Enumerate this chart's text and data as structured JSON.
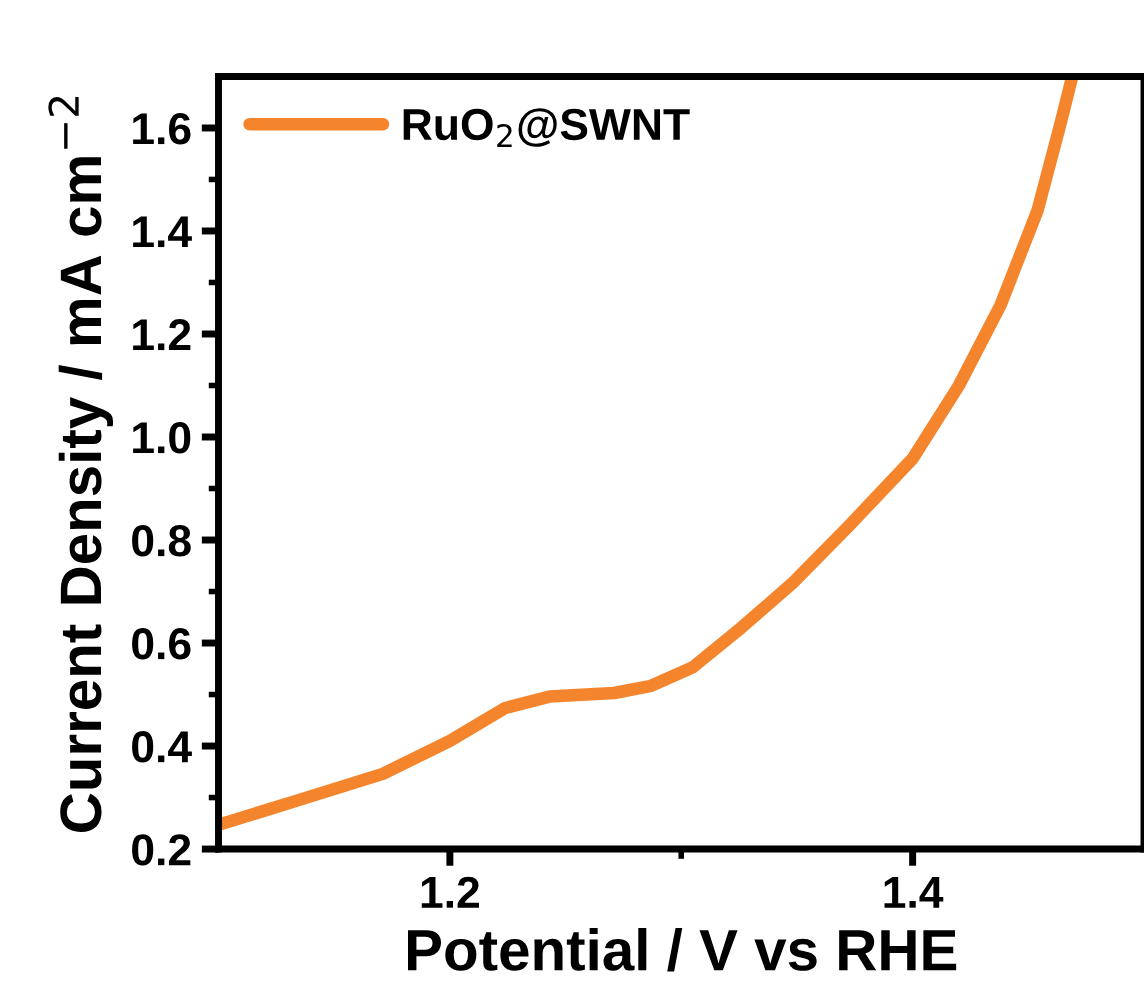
{
  "chart_data": {
    "type": "line",
    "xlabel": "Potential / V vs RHE",
    "ylabel": "Current Density / mA cm$^{−2}$",
    "xlim": [
      1.1,
      1.5
    ],
    "ylim": [
      0.2,
      1.7
    ],
    "xticks": [
      {
        "value": 1.2,
        "label": "1.2"
      },
      {
        "value": 1.3,
        "label": null
      },
      {
        "value": 1.4,
        "label": "1.4"
      }
    ],
    "yticks": [
      {
        "value": 0.2,
        "label": "0.2"
      },
      {
        "value": 0.3,
        "label": null
      },
      {
        "value": 0.4,
        "label": "0.4"
      },
      {
        "value": 0.5,
        "label": null
      },
      {
        "value": 0.6,
        "label": "0.6"
      },
      {
        "value": 0.7,
        "label": null
      },
      {
        "value": 0.8,
        "label": "0.8"
      },
      {
        "value": 0.9,
        "label": null
      },
      {
        "value": 1.0,
        "label": "1.0"
      },
      {
        "value": 1.1,
        "label": null
      },
      {
        "value": 1.2,
        "label": "1.2"
      },
      {
        "value": 1.3,
        "label": null
      },
      {
        "value": 1.4,
        "label": "1.4"
      },
      {
        "value": 1.5,
        "label": null
      },
      {
        "value": 1.6,
        "label": "1.6"
      }
    ],
    "legend": "top left",
    "grid": false,
    "marker": "none",
    "line_style": "solid",
    "series": [
      {
        "name": "RuO$_{2}$@SWNT",
        "color": "#f5852c",
        "x": [
          1.1,
          1.136,
          1.171,
          1.2,
          1.224,
          1.243,
          1.271,
          1.287,
          1.305,
          1.326,
          1.348,
          1.373,
          1.4,
          1.42,
          1.438,
          1.454,
          1.464,
          1.469
        ],
        "values": [
          0.247,
          0.297,
          0.346,
          0.41,
          0.474,
          0.496,
          0.503,
          0.517,
          0.553,
          0.63,
          0.716,
          0.83,
          0.958,
          1.1,
          1.256,
          1.44,
          1.61,
          1.7
        ]
      }
    ]
  }
}
